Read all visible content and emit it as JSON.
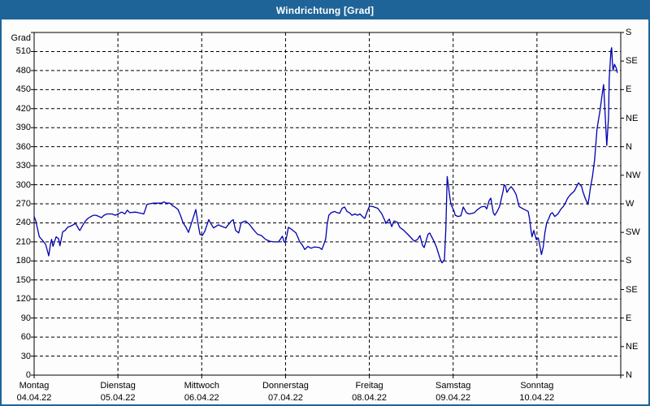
{
  "window": {
    "title": "Windrichtung [Grad]"
  },
  "colors": {
    "titlebar_bg": "#1f6498",
    "titlebar_text": "#ffffff",
    "window_border": "#1f6498",
    "plot_border": "#000000",
    "gridline": "#000000",
    "series_line": "#0000b0",
    "background": "#ffffff",
    "label_text": "#000000"
  },
  "chart_data": {
    "type": "line",
    "title": "Windrichtung [Grad]",
    "x_axis": {
      "unit": "hours since Montag 04.04.22 00:00",
      "range_hours": [
        0,
        168
      ],
      "day_ticks": [
        {
          "day": "Montag",
          "date": "04.04.22"
        },
        {
          "day": "Dienstag",
          "date": "05.04.22"
        },
        {
          "day": "Mittwoch",
          "date": "06.04.22"
        },
        {
          "day": "Donnerstag",
          "date": "07.04.22"
        },
        {
          "day": "Freitag",
          "date": "08.04.22"
        },
        {
          "day": "Samstag",
          "date": "09.04.22"
        },
        {
          "day": "Sonntag",
          "date": "10.04.22"
        }
      ]
    },
    "y_axis_left": {
      "label": "Grad",
      "min": 0,
      "max": 540,
      "tick_step": 30
    },
    "y_axis_right": {
      "tick_step": 45,
      "labels_top_to_bottom": [
        "S",
        "SE",
        "E",
        "NE",
        "N",
        "NW",
        "W",
        "SW",
        "S",
        "SE",
        "E",
        "NE",
        "N"
      ]
    },
    "grid": {
      "horizontal_step": 30,
      "vertical_step_hours": 24,
      "style": "dashed",
      "grid_on": true
    },
    "legend": {
      "visible": false
    },
    "series": [
      {
        "name": "Windrichtung",
        "unit": "Grad",
        "points": [
          [
            0,
            250
          ],
          [
            0.5,
            243
          ],
          [
            1,
            230
          ],
          [
            1.5,
            218
          ],
          [
            2.3,
            213
          ],
          [
            3.3,
            206
          ],
          [
            4.2,
            188
          ],
          [
            4.7,
            207
          ],
          [
            5,
            214
          ],
          [
            5.4,
            203
          ],
          [
            6.3,
            218
          ],
          [
            7,
            215
          ],
          [
            7.4,
            204
          ],
          [
            8.2,
            226
          ],
          [
            8.9,
            228
          ],
          [
            9.6,
            233
          ],
          [
            10.5,
            235
          ],
          [
            11.2,
            237
          ],
          [
            11.9,
            239
          ],
          [
            12.8,
            230
          ],
          [
            13.1,
            228
          ],
          [
            14,
            237
          ],
          [
            14.7,
            243
          ],
          [
            15.4,
            247
          ],
          [
            16.3,
            250
          ],
          [
            17,
            252
          ],
          [
            17.7,
            252
          ],
          [
            18.6,
            250
          ],
          [
            19.3,
            248
          ],
          [
            20,
            252
          ],
          [
            20.9,
            254
          ],
          [
            22.3,
            254
          ],
          [
            23.3,
            252
          ],
          [
            24,
            254
          ],
          [
            25.1,
            257
          ],
          [
            26,
            254
          ],
          [
            26.7,
            260
          ],
          [
            27.4,
            256
          ],
          [
            29.1,
            257
          ],
          [
            30.7,
            255
          ],
          [
            31.4,
            254
          ],
          [
            31.9,
            262
          ],
          [
            32.3,
            269
          ],
          [
            33,
            270
          ],
          [
            34.2,
            271
          ],
          [
            35.6,
            271
          ],
          [
            36.5,
            271
          ],
          [
            37.2,
            273
          ],
          [
            37.9,
            271
          ],
          [
            38.9,
            271
          ],
          [
            39.6,
            267
          ],
          [
            40.3,
            265
          ],
          [
            41.2,
            261
          ],
          [
            41.9,
            252
          ],
          [
            42.6,
            241
          ],
          [
            43,
            237
          ],
          [
            43.5,
            233
          ],
          [
            44.2,
            225
          ],
          [
            44.9,
            237
          ],
          [
            45.8,
            252
          ],
          [
            46.3,
            261
          ],
          [
            47,
            237
          ],
          [
            47.5,
            222
          ],
          [
            48.2,
            220
          ],
          [
            48.9,
            227
          ],
          [
            50,
            245
          ],
          [
            50.7,
            238
          ],
          [
            51.4,
            232
          ],
          [
            52.8,
            237
          ],
          [
            53.5,
            235
          ],
          [
            54.9,
            232
          ],
          [
            55.6,
            237
          ],
          [
            56.5,
            243
          ],
          [
            57,
            245
          ],
          [
            57.7,
            228
          ],
          [
            58.6,
            224
          ],
          [
            59.3,
            240
          ],
          [
            60.5,
            243
          ],
          [
            61.6,
            238
          ],
          [
            63,
            228
          ],
          [
            64,
            222
          ],
          [
            65.1,
            220
          ],
          [
            66.3,
            214
          ],
          [
            67.5,
            211
          ],
          [
            68.6,
            210
          ],
          [
            70,
            210
          ],
          [
            71.1,
            219
          ],
          [
            71.6,
            210
          ],
          [
            71.9,
            209
          ],
          [
            72.4,
            220
          ],
          [
            72.8,
            233
          ],
          [
            73.7,
            230
          ],
          [
            75,
            224
          ],
          [
            76.1,
            210
          ],
          [
            76.8,
            205
          ],
          [
            77.5,
            198
          ],
          [
            78.4,
            203
          ],
          [
            79.3,
            200
          ],
          [
            80.3,
            202
          ],
          [
            81.7,
            201
          ],
          [
            82.4,
            198
          ],
          [
            82.9,
            205
          ],
          [
            83.5,
            215
          ],
          [
            83.9,
            237
          ],
          [
            84.4,
            252
          ],
          [
            85.1,
            256
          ],
          [
            86.1,
            258
          ],
          [
            86.8,
            256
          ],
          [
            87.5,
            255
          ],
          [
            88.2,
            263
          ],
          [
            88.9,
            265
          ],
          [
            89.6,
            258
          ],
          [
            90.3,
            256
          ],
          [
            91,
            252
          ],
          [
            91.9,
            254
          ],
          [
            92.6,
            252
          ],
          [
            93.3,
            254
          ],
          [
            94,
            250
          ],
          [
            94.7,
            247
          ],
          [
            95.4,
            258
          ],
          [
            96,
            266
          ],
          [
            96.8,
            266
          ],
          [
            98.4,
            263
          ],
          [
            99.6,
            254
          ],
          [
            100.5,
            243
          ],
          [
            100.7,
            239
          ],
          [
            101.7,
            246
          ],
          [
            102.4,
            234
          ],
          [
            103.1,
            243
          ],
          [
            104,
            241
          ],
          [
            104.7,
            233
          ],
          [
            105.9,
            228
          ],
          [
            107,
            222
          ],
          [
            108.2,
            215
          ],
          [
            108.9,
            211
          ],
          [
            109.8,
            214
          ],
          [
            110.5,
            220
          ],
          [
            111.2,
            205
          ],
          [
            111.7,
            201
          ],
          [
            112.8,
            222
          ],
          [
            113.3,
            224
          ],
          [
            114.5,
            211
          ],
          [
            115.2,
            202
          ],
          [
            116.3,
            183
          ],
          [
            116.8,
            177
          ],
          [
            117.5,
            182
          ],
          [
            117.9,
            230
          ],
          [
            118.3,
            313
          ],
          [
            119.1,
            279
          ],
          [
            119.4,
            269
          ],
          [
            120.3,
            258
          ],
          [
            120.6,
            252
          ],
          [
            121.4,
            250
          ],
          [
            122.2,
            251
          ],
          [
            122.9,
            265
          ],
          [
            123.8,
            256
          ],
          [
            124.5,
            254
          ],
          [
            125.4,
            255
          ],
          [
            126.1,
            256
          ],
          [
            126.8,
            260
          ],
          [
            128,
            265
          ],
          [
            129.1,
            266
          ],
          [
            129.6,
            262
          ],
          [
            130.3,
            275
          ],
          [
            130.8,
            279
          ],
          [
            131.5,
            256
          ],
          [
            131.9,
            252
          ],
          [
            132.6,
            258
          ],
          [
            133.3,
            266
          ],
          [
            134.3,
            290
          ],
          [
            134.6,
            300
          ],
          [
            135,
            298
          ],
          [
            135.4,
            288
          ],
          [
            136.1,
            294
          ],
          [
            136.6,
            297
          ],
          [
            137.3,
            292
          ],
          [
            138,
            285
          ],
          [
            138.9,
            266
          ],
          [
            139.1,
            265
          ],
          [
            140.1,
            262
          ],
          [
            140.8,
            260
          ],
          [
            141.5,
            258
          ],
          [
            141.9,
            246
          ],
          [
            142.4,
            224
          ],
          [
            142.6,
            218
          ],
          [
            143.1,
            228
          ],
          [
            143.8,
            214
          ],
          [
            144.4,
            216
          ],
          [
            144.9,
            202
          ],
          [
            145.3,
            190
          ],
          [
            145.8,
            202
          ],
          [
            146.3,
            225
          ],
          [
            146.8,
            240
          ],
          [
            147.4,
            247
          ],
          [
            147.9,
            254
          ],
          [
            148.4,
            256
          ],
          [
            149.1,
            250
          ],
          [
            150,
            254
          ],
          [
            150.9,
            262
          ],
          [
            151.6,
            266
          ],
          [
            152.1,
            271
          ],
          [
            152.8,
            279
          ],
          [
            153.5,
            284
          ],
          [
            154.7,
            290
          ],
          [
            155.9,
            303
          ],
          [
            156.8,
            297
          ],
          [
            157.1,
            290
          ],
          [
            157.8,
            279
          ],
          [
            158.6,
            269
          ],
          [
            158.9,
            279
          ],
          [
            159.4,
            298
          ],
          [
            159.9,
            313
          ],
          [
            160.2,
            326
          ],
          [
            160.5,
            339
          ],
          [
            161.2,
            388
          ],
          [
            162.1,
            418
          ],
          [
            162.8,
            448
          ],
          [
            163.1,
            458
          ],
          [
            163.6,
            403
          ],
          [
            164,
            362
          ],
          [
            164.5,
            407
          ],
          [
            164.7,
            467
          ],
          [
            165.2,
            512
          ],
          [
            165.4,
            516
          ],
          [
            165.6,
            493
          ],
          [
            165.8,
            480
          ],
          [
            166.2,
            490
          ],
          [
            166.7,
            484
          ],
          [
            167,
            477
          ]
        ]
      }
    ]
  }
}
